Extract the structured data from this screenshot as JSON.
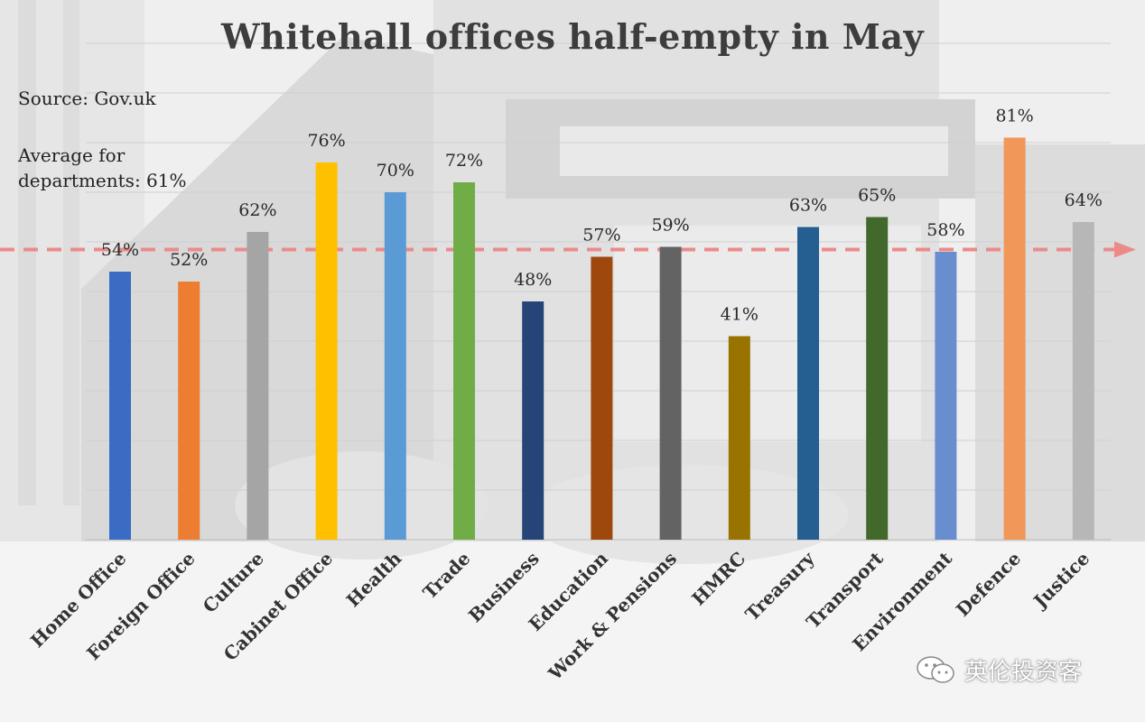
{
  "chart_data": {
    "type": "bar",
    "title": "Whitehall offices half-empty in May",
    "source": "Source: Gov.uk",
    "average_line1": "Average for",
    "average_line2": "departments: 61%",
    "average_value": 61,
    "ylim": [
      0,
      100
    ],
    "grid": true,
    "categories": [
      "Home Office",
      "Foreign Office",
      "Culture",
      "Cabinet Office",
      "Health",
      "Trade",
      "Business",
      "Education",
      "Work & Pensions",
      "HMRC",
      "Treasury",
      "Transport",
      "Environment",
      "Defence",
      "Justice"
    ],
    "values": [
      54,
      52,
      62,
      76,
      70,
      72,
      48,
      57,
      59,
      41,
      63,
      65,
      58,
      81,
      64
    ],
    "value_labels": [
      "54%",
      "52%",
      "62%",
      "76%",
      "70%",
      "72%",
      "48%",
      "57%",
      "59%",
      "41%",
      "63%",
      "65%",
      "58%",
      "81%",
      "64%"
    ],
    "colors": [
      "#3a6cc4",
      "#ed7d31",
      "#a5a5a5",
      "#ffc000",
      "#5b9bd5",
      "#70ad47",
      "#264478",
      "#9e480e",
      "#636363",
      "#997300",
      "#255e91",
      "#43682b",
      "#698ed0",
      "#f1975a",
      "#b7b7b7"
    ],
    "average_line_color": "#ec8a8a"
  },
  "watermark": {
    "text": "英伦投资客",
    "icon": "wechat-icon"
  }
}
